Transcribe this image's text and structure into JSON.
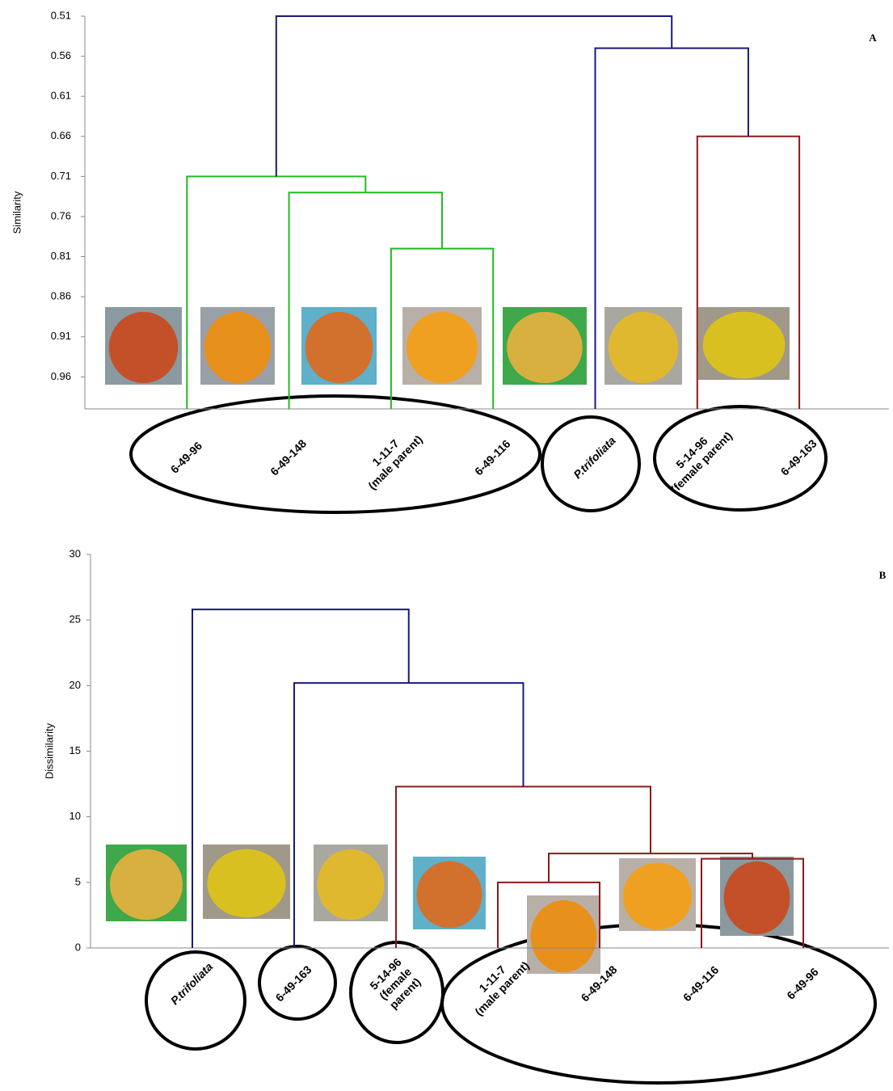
{
  "chart_data": [
    {
      "type": "dendrogram",
      "panel": "A",
      "y_label": "Similarity",
      "ylim": [
        1.0,
        0.51
      ],
      "yticks": [
        0.51,
        0.56,
        0.61,
        0.66,
        0.71,
        0.76,
        0.81,
        0.86,
        0.91,
        0.96
      ],
      "leaves": [
        {
          "label": [
            "6-49-96"
          ]
        },
        {
          "label": [
            "6-49-148"
          ]
        },
        {
          "label": [
            "1-11-7",
            "(male parent)"
          ]
        },
        {
          "label": [
            "6-49-116"
          ]
        },
        {
          "label": [
            "P.trifoliata"
          ],
          "italic": true
        },
        {
          "label": [
            "5-14-96",
            "(female parent)"
          ]
        },
        {
          "label": [
            "6-49-163"
          ]
        }
      ],
      "merges": [
        {
          "children": [
            2,
            3
          ],
          "height": 0.8,
          "color": "#22bb22"
        },
        {
          "children": [
            1,
            7
          ],
          "height": 0.73,
          "color": "#22bb22"
        },
        {
          "children": [
            0,
            8
          ],
          "height": 0.71,
          "color": "#22bb22"
        },
        {
          "children": [
            5,
            6
          ],
          "height": 0.66,
          "color": "#8b1a1a"
        },
        {
          "children": [
            4,
            10
          ],
          "height": 0.55,
          "color": "#1a1a7a"
        },
        {
          "children": [
            9,
            11
          ],
          "height": 0.51,
          "color": "#1a1a7a"
        }
      ]
    },
    {
      "type": "dendrogram",
      "panel": "B",
      "y_label": "Dissimilarity",
      "ylim": [
        0,
        30
      ],
      "yticks": [
        0,
        5,
        10,
        15,
        20,
        25,
        30
      ],
      "leaves": [
        {
          "label": [
            "P.trifoliata"
          ],
          "italic": true
        },
        {
          "label": [
            "6-49-163"
          ]
        },
        {
          "label": [
            "5-14-96",
            "(female",
            "parent)"
          ]
        },
        {
          "label": [
            "1-11-7",
            "(male parent)"
          ]
        },
        {
          "label": [
            "6-49-148"
          ]
        },
        {
          "label": [
            "6-49-116"
          ]
        },
        {
          "label": [
            "6-49-96"
          ]
        }
      ],
      "merges": [
        {
          "children": [
            3,
            4
          ],
          "height": 5.0,
          "color": "#8b1a1a"
        },
        {
          "children": [
            5,
            6
          ],
          "height": 6.8,
          "color": "#8b1a1a"
        },
        {
          "children": [
            7,
            8
          ],
          "height": 7.2,
          "color": "#8b1a1a"
        },
        {
          "children": [
            2,
            9
          ],
          "height": 12.3,
          "color": "#8b1a1a"
        },
        {
          "children": [
            1,
            10
          ],
          "height": 20.2,
          "color": "#1a1a7a"
        },
        {
          "children": [
            0,
            11
          ],
          "height": 25.8,
          "color": "#1a1a7a"
        }
      ]
    }
  ]
}
